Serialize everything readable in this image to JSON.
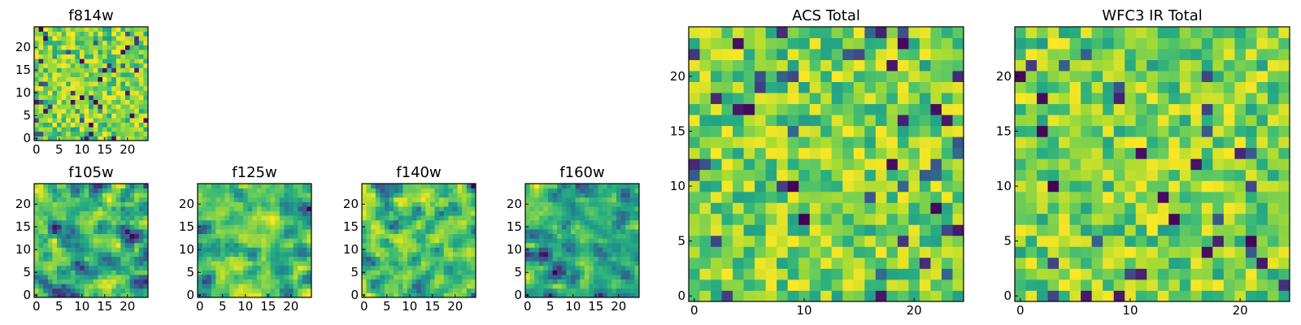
{
  "chart_data": [
    {
      "type": "heatmap",
      "title": "f814w",
      "grid_size": 25,
      "colormap": "viridis",
      "xlim": [
        -0.5,
        24.5
      ],
      "ylim": [
        -0.5,
        24.5
      ],
      "xticks": [
        0,
        5,
        10,
        15,
        20
      ],
      "yticks": [
        0,
        5,
        10,
        15,
        20
      ],
      "seed": 11,
      "smooth": 0,
      "values": []
    },
    {
      "type": "heatmap",
      "title": "f105w",
      "grid_size": 25,
      "colormap": "viridis",
      "xlim": [
        -0.5,
        24.5
      ],
      "ylim": [
        -0.5,
        24.5
      ],
      "xticks": [
        0,
        5,
        10,
        15,
        20
      ],
      "yticks": [
        0,
        5,
        10,
        15,
        20
      ],
      "seed": 23,
      "smooth": 1,
      "values": []
    },
    {
      "type": "heatmap",
      "title": "f125w",
      "grid_size": 25,
      "colormap": "viridis",
      "xlim": [
        -0.5,
        24.5
      ],
      "ylim": [
        -0.5,
        24.5
      ],
      "xticks": [
        0,
        5,
        10,
        15,
        20
      ],
      "yticks": [
        0,
        5,
        10,
        15,
        20
      ],
      "seed": 37,
      "smooth": 1,
      "values": []
    },
    {
      "type": "heatmap",
      "title": "f140w",
      "grid_size": 25,
      "colormap": "viridis",
      "xlim": [
        -0.5,
        24.5
      ],
      "ylim": [
        -0.5,
        24.5
      ],
      "xticks": [
        0,
        5,
        10,
        15,
        20
      ],
      "yticks": [
        0,
        5,
        10,
        15,
        20
      ],
      "seed": 41,
      "smooth": 1,
      "values": []
    },
    {
      "type": "heatmap",
      "title": "f160w",
      "grid_size": 25,
      "colormap": "viridis",
      "xlim": [
        -0.5,
        24.5
      ],
      "ylim": [
        -0.5,
        24.5
      ],
      "xticks": [
        0,
        5,
        10,
        15,
        20
      ],
      "yticks": [
        0,
        5,
        10,
        15,
        20
      ],
      "seed": 53,
      "smooth": 1,
      "values": []
    },
    {
      "type": "heatmap",
      "title": "ACS Total",
      "grid_size": 25,
      "colormap": "viridis",
      "xlim": [
        -0.5,
        24.5
      ],
      "ylim": [
        -0.5,
        24.5
      ],
      "xticks": [
        0,
        10,
        20
      ],
      "yticks": [
        0,
        5,
        10,
        15,
        20
      ],
      "seed": 67,
      "smooth": 0,
      "values": []
    },
    {
      "type": "heatmap",
      "title": "WFC3 IR Total",
      "grid_size": 25,
      "colormap": "viridis",
      "xlim": [
        -0.5,
        24.5
      ],
      "ylim": [
        -0.5,
        24.5
      ],
      "xticks": [
        0,
        10,
        20
      ],
      "yticks": [
        0,
        5,
        10,
        15,
        20
      ],
      "seed": 79,
      "smooth": 0,
      "values": []
    }
  ]
}
